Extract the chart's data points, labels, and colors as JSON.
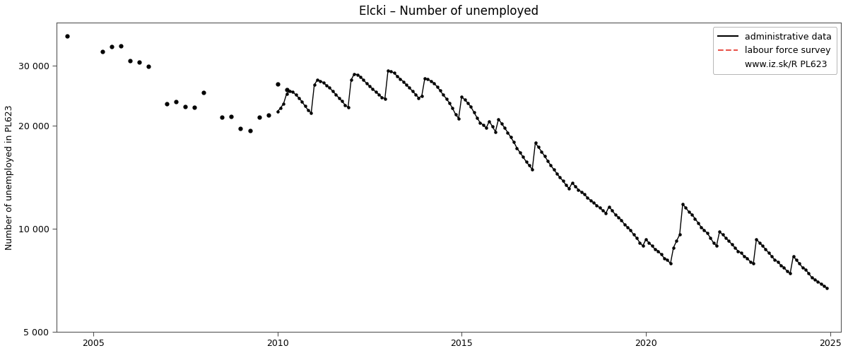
{
  "title": "Elcki – Number of unemployed",
  "ylabel": "Number of unemployed in PL623",
  "xlabel": "",
  "xlim": [
    2004.0,
    2025.3
  ],
  "ylim": [
    5000,
    40000
  ],
  "yticks": [
    5000,
    10000,
    20000,
    30000
  ],
  "xticks": [
    2005,
    2010,
    2015,
    2020,
    2025
  ],
  "bg_color": "#ffffff",
  "line_color": "#000000",
  "scatter_color": "#000000",
  "lfs_color": "#e8534a",
  "legend_labels": [
    "administrative data",
    "labour force survey",
    "www.iz.sk/R PL623"
  ],
  "scatter_data": [
    [
      2004.3,
      36500
    ],
    [
      2005.25,
      33000
    ],
    [
      2005.5,
      34000
    ],
    [
      2005.75,
      34200
    ],
    [
      2006.0,
      31000
    ],
    [
      2006.25,
      30700
    ],
    [
      2006.5,
      29800
    ],
    [
      2007.0,
      23200
    ],
    [
      2007.25,
      23500
    ],
    [
      2007.5,
      22700
    ],
    [
      2007.75,
      22600
    ],
    [
      2008.0,
      25000
    ],
    [
      2008.5,
      21200
    ],
    [
      2008.75,
      21300
    ],
    [
      2009.0,
      19600
    ],
    [
      2009.25,
      19300
    ],
    [
      2009.5,
      21200
    ],
    [
      2009.75,
      21500
    ],
    [
      2010.0,
      26500
    ],
    [
      2010.25,
      25500
    ]
  ],
  "admin_line": [
    [
      2010.0,
      22000
    ],
    [
      2010.083,
      22500
    ],
    [
      2010.167,
      23200
    ],
    [
      2010.25,
      24800
    ],
    [
      2010.333,
      25200
    ],
    [
      2010.417,
      25100
    ],
    [
      2010.5,
      24600
    ],
    [
      2010.583,
      24100
    ],
    [
      2010.667,
      23500
    ],
    [
      2010.75,
      22800
    ],
    [
      2010.833,
      22200
    ],
    [
      2010.917,
      21800
    ],
    [
      2011.0,
      26300
    ],
    [
      2011.083,
      27200
    ],
    [
      2011.167,
      27000
    ],
    [
      2011.25,
      26700
    ],
    [
      2011.333,
      26200
    ],
    [
      2011.417,
      25800
    ],
    [
      2011.5,
      25200
    ],
    [
      2011.583,
      24700
    ],
    [
      2011.667,
      24100
    ],
    [
      2011.75,
      23600
    ],
    [
      2011.833,
      23000
    ],
    [
      2011.917,
      22600
    ],
    [
      2012.0,
      27200
    ],
    [
      2012.083,
      28300
    ],
    [
      2012.167,
      28200
    ],
    [
      2012.25,
      27800
    ],
    [
      2012.333,
      27200
    ],
    [
      2012.417,
      26600
    ],
    [
      2012.5,
      26100
    ],
    [
      2012.583,
      25600
    ],
    [
      2012.667,
      25100
    ],
    [
      2012.75,
      24700
    ],
    [
      2012.833,
      24200
    ],
    [
      2012.917,
      24000
    ],
    [
      2013.0,
      28900
    ],
    [
      2013.083,
      28800
    ],
    [
      2013.167,
      28500
    ],
    [
      2013.25,
      27900
    ],
    [
      2013.333,
      27400
    ],
    [
      2013.417,
      26900
    ],
    [
      2013.5,
      26300
    ],
    [
      2013.583,
      25800
    ],
    [
      2013.667,
      25200
    ],
    [
      2013.75,
      24700
    ],
    [
      2013.833,
      24100
    ],
    [
      2013.917,
      24400
    ],
    [
      2014.0,
      27500
    ],
    [
      2014.083,
      27300
    ],
    [
      2014.167,
      27000
    ],
    [
      2014.25,
      26600
    ],
    [
      2014.333,
      26000
    ],
    [
      2014.417,
      25300
    ],
    [
      2014.5,
      24600
    ],
    [
      2014.583,
      24000
    ],
    [
      2014.667,
      23300
    ],
    [
      2014.75,
      22500
    ],
    [
      2014.833,
      21600
    ],
    [
      2014.917,
      21000
    ],
    [
      2015.0,
      24300
    ],
    [
      2015.083,
      23800
    ],
    [
      2015.167,
      23300
    ],
    [
      2015.25,
      22700
    ],
    [
      2015.333,
      21900
    ],
    [
      2015.417,
      21100
    ],
    [
      2015.5,
      20400
    ],
    [
      2015.583,
      20100
    ],
    [
      2015.667,
      19700
    ],
    [
      2015.75,
      20600
    ],
    [
      2015.833,
      19900
    ],
    [
      2015.917,
      19200
    ],
    [
      2016.0,
      20900
    ],
    [
      2016.083,
      20300
    ],
    [
      2016.167,
      19700
    ],
    [
      2016.25,
      19100
    ],
    [
      2016.333,
      18500
    ],
    [
      2016.417,
      17900
    ],
    [
      2016.5,
      17200
    ],
    [
      2016.583,
      16700
    ],
    [
      2016.667,
      16200
    ],
    [
      2016.75,
      15700
    ],
    [
      2016.833,
      15300
    ],
    [
      2016.917,
      14900
    ],
    [
      2017.0,
      17800
    ],
    [
      2017.083,
      17300
    ],
    [
      2017.167,
      16800
    ],
    [
      2017.25,
      16300
    ],
    [
      2017.333,
      15800
    ],
    [
      2017.417,
      15300
    ],
    [
      2017.5,
      14900
    ],
    [
      2017.583,
      14500
    ],
    [
      2017.667,
      14100
    ],
    [
      2017.75,
      13800
    ],
    [
      2017.833,
      13400
    ],
    [
      2017.917,
      13100
    ],
    [
      2018.0,
      13600
    ],
    [
      2018.083,
      13300
    ],
    [
      2018.167,
      13000
    ],
    [
      2018.25,
      12800
    ],
    [
      2018.333,
      12600
    ],
    [
      2018.417,
      12300
    ],
    [
      2018.5,
      12100
    ],
    [
      2018.583,
      11900
    ],
    [
      2018.667,
      11700
    ],
    [
      2018.75,
      11500
    ],
    [
      2018.833,
      11300
    ],
    [
      2018.917,
      11100
    ],
    [
      2019.0,
      11600
    ],
    [
      2019.083,
      11300
    ],
    [
      2019.167,
      11000
    ],
    [
      2019.25,
      10800
    ],
    [
      2019.333,
      10600
    ],
    [
      2019.417,
      10300
    ],
    [
      2019.5,
      10100
    ],
    [
      2019.583,
      9900
    ],
    [
      2019.667,
      9600
    ],
    [
      2019.75,
      9400
    ],
    [
      2019.833,
      9100
    ],
    [
      2019.917,
      8900
    ],
    [
      2020.0,
      9300
    ],
    [
      2020.083,
      9100
    ],
    [
      2020.167,
      8900
    ],
    [
      2020.25,
      8700
    ],
    [
      2020.333,
      8600
    ],
    [
      2020.417,
      8400
    ],
    [
      2020.5,
      8200
    ],
    [
      2020.583,
      8100
    ],
    [
      2020.667,
      7900
    ],
    [
      2020.75,
      8800
    ],
    [
      2020.833,
      9200
    ],
    [
      2020.917,
      9600
    ],
    [
      2021.0,
      11800
    ],
    [
      2021.083,
      11500
    ],
    [
      2021.167,
      11200
    ],
    [
      2021.25,
      11000
    ],
    [
      2021.333,
      10700
    ],
    [
      2021.417,
      10400
    ],
    [
      2021.5,
      10100
    ],
    [
      2021.583,
      9900
    ],
    [
      2021.667,
      9700
    ],
    [
      2021.75,
      9400
    ],
    [
      2021.833,
      9100
    ],
    [
      2021.917,
      8900
    ],
    [
      2022.0,
      9800
    ],
    [
      2022.083,
      9600
    ],
    [
      2022.167,
      9400
    ],
    [
      2022.25,
      9200
    ],
    [
      2022.333,
      9000
    ],
    [
      2022.417,
      8800
    ],
    [
      2022.5,
      8600
    ],
    [
      2022.583,
      8500
    ],
    [
      2022.667,
      8300
    ],
    [
      2022.75,
      8200
    ],
    [
      2022.833,
      8000
    ],
    [
      2022.917,
      7900
    ],
    [
      2023.0,
      9300
    ],
    [
      2023.083,
      9100
    ],
    [
      2023.167,
      8900
    ],
    [
      2023.25,
      8700
    ],
    [
      2023.333,
      8500
    ],
    [
      2023.417,
      8300
    ],
    [
      2023.5,
      8100
    ],
    [
      2023.583,
      8000
    ],
    [
      2023.667,
      7800
    ],
    [
      2023.75,
      7700
    ],
    [
      2023.833,
      7500
    ],
    [
      2023.917,
      7400
    ],
    [
      2024.0,
      8300
    ],
    [
      2024.083,
      8100
    ],
    [
      2024.167,
      7900
    ],
    [
      2024.25,
      7700
    ],
    [
      2024.333,
      7600
    ],
    [
      2024.417,
      7400
    ],
    [
      2024.5,
      7200
    ],
    [
      2024.583,
      7100
    ],
    [
      2024.667,
      7000
    ],
    [
      2024.75,
      6900
    ],
    [
      2024.833,
      6800
    ],
    [
      2024.917,
      6700
    ]
  ]
}
